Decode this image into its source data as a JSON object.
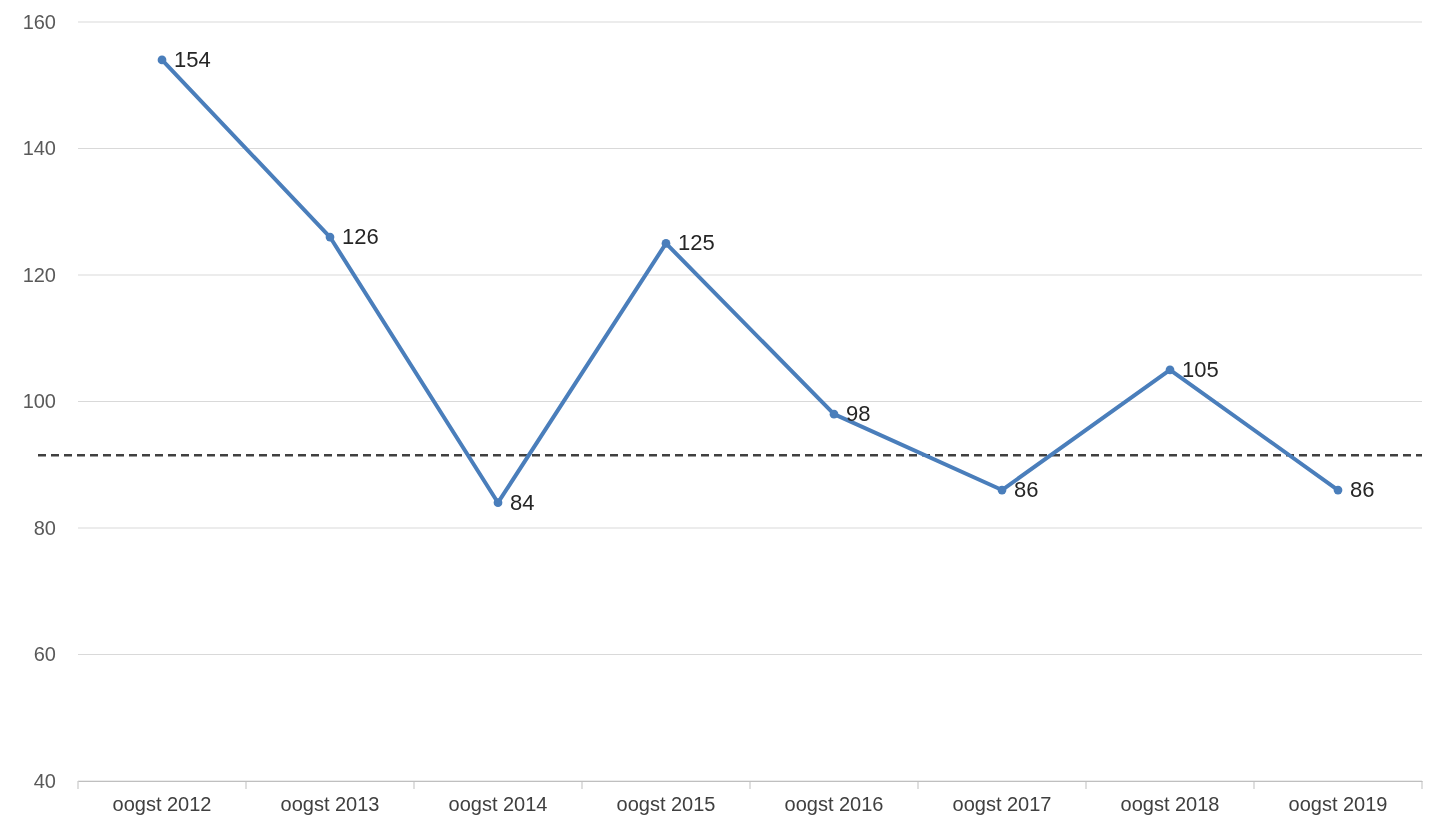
{
  "chart_data": {
    "type": "line",
    "categories": [
      "oogst 2012",
      "oogst 2013",
      "oogst 2014",
      "oogst 2015",
      "oogst 2016",
      "oogst 2017",
      "oogst 2018",
      "oogst 2019"
    ],
    "series": [
      {
        "color": "#4a7ebb",
        "values": [
          154,
          126,
          84,
          125,
          98,
          86,
          105,
          86
        ]
      }
    ],
    "ylim": [
      40,
      160
    ],
    "yticks": [
      40,
      60,
      80,
      100,
      120,
      140,
      160
    ],
    "grid": "y",
    "marker": "circle",
    "line_style": "solid",
    "data_labels": true,
    "ref_lines": [
      {
        "axis": "y",
        "value": 91.5,
        "color": "#404040",
        "line_style": "dashed"
      }
    ]
  }
}
